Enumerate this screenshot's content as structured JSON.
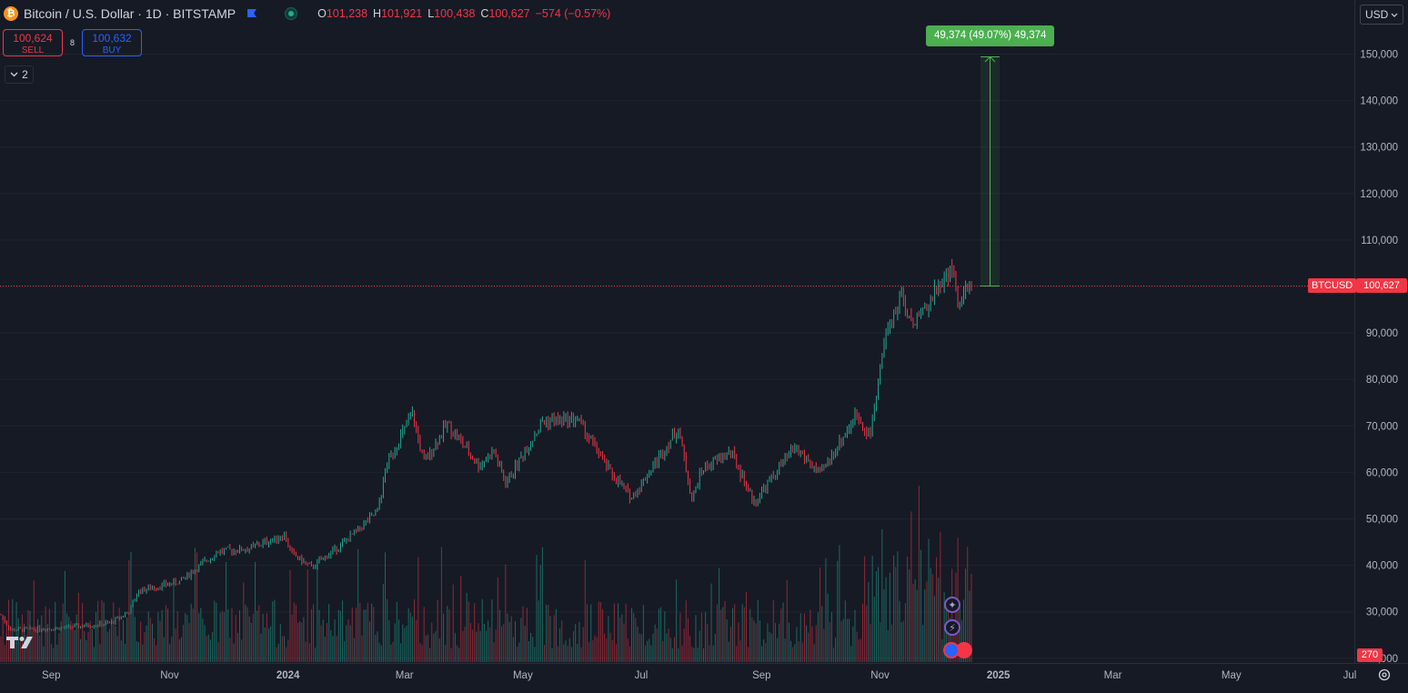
{
  "header": {
    "title": "Bitcoin / U.S. Dollar · 1D · BITSTAMP",
    "ohlc": {
      "o_label": "O",
      "o": "101,238",
      "h_label": "H",
      "h": "101,921",
      "l_label": "L",
      "l": "100,438",
      "c_label": "C",
      "c": "100,627",
      "change": "−574 (−0.57%)"
    }
  },
  "trade": {
    "sell_price": "100,624",
    "sell_label": "SELL",
    "spread": "8",
    "buy_price": "100,632",
    "buy_label": "BUY"
  },
  "indicators_count": "2",
  "currency": "USD",
  "measure_label": "49,374 (49.07%) 49,374",
  "symbol_tag": "BTCUSD",
  "last_price_tag": "100,627",
  "volume_tag": "270",
  "colors": {
    "up": "#22ab94",
    "down": "#f23645",
    "bg": "#161a25",
    "grid": "#1f2430",
    "measure": "#4caf50"
  },
  "icons": [
    "bitcoin-icon",
    "flag-icon",
    "market-status-icon",
    "chevron-down-icon",
    "tradingview-logo-icon",
    "sparkle-icon",
    "lightning-icon",
    "us-flag-icon",
    "settings-icon"
  ],
  "chart_data": {
    "type": "candlestick",
    "y_axis_ticks": [
      "150,000",
      "140,000",
      "130,000",
      "120,000",
      "110,000",
      "100,000",
      "90,000",
      "80,000",
      "70,000",
      "60,000",
      "50,000",
      "40,000",
      "30,000",
      "20,000"
    ],
    "x_axis_ticks": [
      "Sep",
      "Nov",
      "2024",
      "Mar",
      "May",
      "Jul",
      "Sep",
      "Nov",
      "2025",
      "Mar",
      "May",
      "Jul"
    ],
    "ylim": [
      20000,
      162000
    ],
    "last_price": 100627,
    "measure": {
      "from": 100627,
      "to": 150000,
      "change": 49374,
      "percent": 49.07
    },
    "price_path": [
      [
        "2023-08-15",
        29300
      ],
      [
        "2023-08-20",
        26100
      ],
      [
        "2023-09-15",
        26500
      ],
      [
        "2023-10-10",
        27500
      ],
      [
        "2023-10-20",
        30000
      ],
      [
        "2023-10-25",
        34500
      ],
      [
        "2023-11-15",
        36500
      ],
      [
        "2023-12-05",
        43000
      ],
      [
        "2023-12-20",
        43500
      ],
      [
        "2024-01-08",
        46500
      ],
      [
        "2024-01-12",
        42500
      ],
      [
        "2024-01-22",
        39500
      ],
      [
        "2024-02-08",
        45000
      ],
      [
        "2024-02-25",
        51500
      ],
      [
        "2024-03-01",
        62000
      ],
      [
        "2024-03-14",
        72500
      ],
      [
        "2024-03-20",
        62000
      ],
      [
        "2024-04-01",
        70500
      ],
      [
        "2024-04-17",
        61500
      ],
      [
        "2024-04-25",
        64500
      ],
      [
        "2024-05-01",
        57500
      ],
      [
        "2024-05-20",
        71000
      ],
      [
        "2024-06-07",
        71500
      ],
      [
        "2024-06-24",
        60000
      ],
      [
        "2024-07-05",
        54500
      ],
      [
        "2024-07-29",
        69500
      ],
      [
        "2024-08-05",
        54000
      ],
      [
        "2024-08-10",
        60500
      ],
      [
        "2024-08-25",
        64500
      ],
      [
        "2024-09-06",
        53500
      ],
      [
        "2024-09-27",
        65500
      ],
      [
        "2024-10-10",
        59500
      ],
      [
        "2024-10-29",
        72500
      ],
      [
        "2024-11-05",
        68000
      ],
      [
        "2024-11-12",
        88500
      ],
      [
        "2024-11-22",
        98500
      ],
      [
        "2024-11-26",
        91500
      ],
      [
        "2024-12-05",
        97000
      ],
      [
        "2024-12-17",
        104000
      ],
      [
        "2024-12-20",
        96000
      ],
      [
        "2024-12-25",
        99500
      ],
      [
        "2024-12-27",
        100627
      ]
    ]
  }
}
